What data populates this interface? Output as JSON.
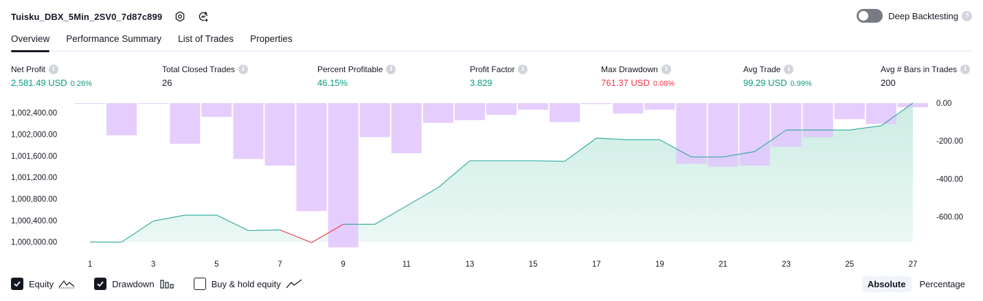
{
  "header": {
    "title": "Tuisku_DBX_5Min_2SV0_7d87c899",
    "deep_backtesting_label": "Deep Backtesting",
    "deep_backtesting_enabled": false,
    "help_glyph": "?"
  },
  "tabs": [
    {
      "label": "Overview",
      "active": true
    },
    {
      "label": "Performance Summary",
      "active": false
    },
    {
      "label": "List of Trades",
      "active": false
    },
    {
      "label": "Properties",
      "active": false
    }
  ],
  "metrics": {
    "info_glyph": "i",
    "net_profit": {
      "label": "Net Profit",
      "value": "2,581.49 USD",
      "pct": "0.26%"
    },
    "total_closed_trades": {
      "label": "Total Closed Trades",
      "value": "26"
    },
    "percent_profitable": {
      "label": "Percent Profitable",
      "value": "46.15%"
    },
    "profit_factor": {
      "label": "Profit Factor",
      "value": "3.829"
    },
    "max_drawdown": {
      "label": "Max Drawdown",
      "value": "761.37 USD",
      "pct": "0.08%"
    },
    "avg_trade": {
      "label": "Avg Trade",
      "value": "99.29 USD",
      "pct": "0.99%"
    },
    "avg_bars": {
      "label": "Avg # Bars in Trades",
      "value": "200"
    }
  },
  "colors": {
    "green": "#089981",
    "red": "#f23645",
    "drawdown_fill": "#e1c5fd",
    "equity_line": "#26a69a",
    "equity_fill": "#c8ebe1"
  },
  "chart_data": {
    "type": "line",
    "x": [
      1,
      2,
      3,
      4,
      5,
      6,
      7,
      8,
      9,
      10,
      11,
      12,
      13,
      14,
      15,
      16,
      17,
      18,
      19,
      20,
      21,
      22,
      23,
      24,
      25,
      26,
      27
    ],
    "x_tick_labels": [
      "1",
      "3",
      "5",
      "7",
      "9",
      "11",
      "13",
      "15",
      "17",
      "19",
      "21",
      "23",
      "25",
      "27"
    ],
    "y_left_ticks": [
      "1,002,400.00",
      "1,002,000.00",
      "1,001,600.00",
      "1,001,200.00",
      "1,000,800.00",
      "1,000,400.00",
      "1,000,000.00"
    ],
    "y_left_range": [
      999990,
      1002580
    ],
    "y_right_ticks": [
      "0.00",
      "-200.00",
      "-400.00",
      "-600.00"
    ],
    "y_right_range": [
      -761.37,
      0
    ],
    "series": [
      {
        "name": "Equity",
        "axis": "left",
        "values": [
          1000000,
          1000000,
          1000390,
          1000500,
          1000500,
          1000215,
          1000225,
          999990,
          1000330,
          1000330,
          1000670,
          1001010,
          1001510,
          1001510,
          1001510,
          1001500,
          1001930,
          1001900,
          1001900,
          1001580,
          1001580,
          1001680,
          1002080,
          1002080,
          1002080,
          1002160,
          1002581
        ]
      },
      {
        "name": "Drawdown",
        "axis": "right",
        "type": "bar",
        "values": [
          -2,
          -170,
          -2,
          -215,
          -73,
          -295,
          -330,
          -570,
          -761,
          -180,
          -265,
          -105,
          -90,
          -62,
          -35,
          -100,
          -5,
          -55,
          -35,
          -320,
          -335,
          -330,
          -230,
          -180,
          -85,
          -110,
          -22
        ]
      }
    ],
    "grid": false
  },
  "legend": {
    "items": [
      {
        "label": "Equity",
        "checked": true,
        "icon": "equity-line-icon"
      },
      {
        "label": "Drawdown",
        "checked": true,
        "icon": "drawdown-bars-icon"
      },
      {
        "label": "Buy & hold equity",
        "checked": false,
        "icon": "buy-hold-line-icon"
      }
    ]
  },
  "mode": {
    "absolute": "Absolute",
    "percentage": "Percentage",
    "selected": "Absolute"
  }
}
